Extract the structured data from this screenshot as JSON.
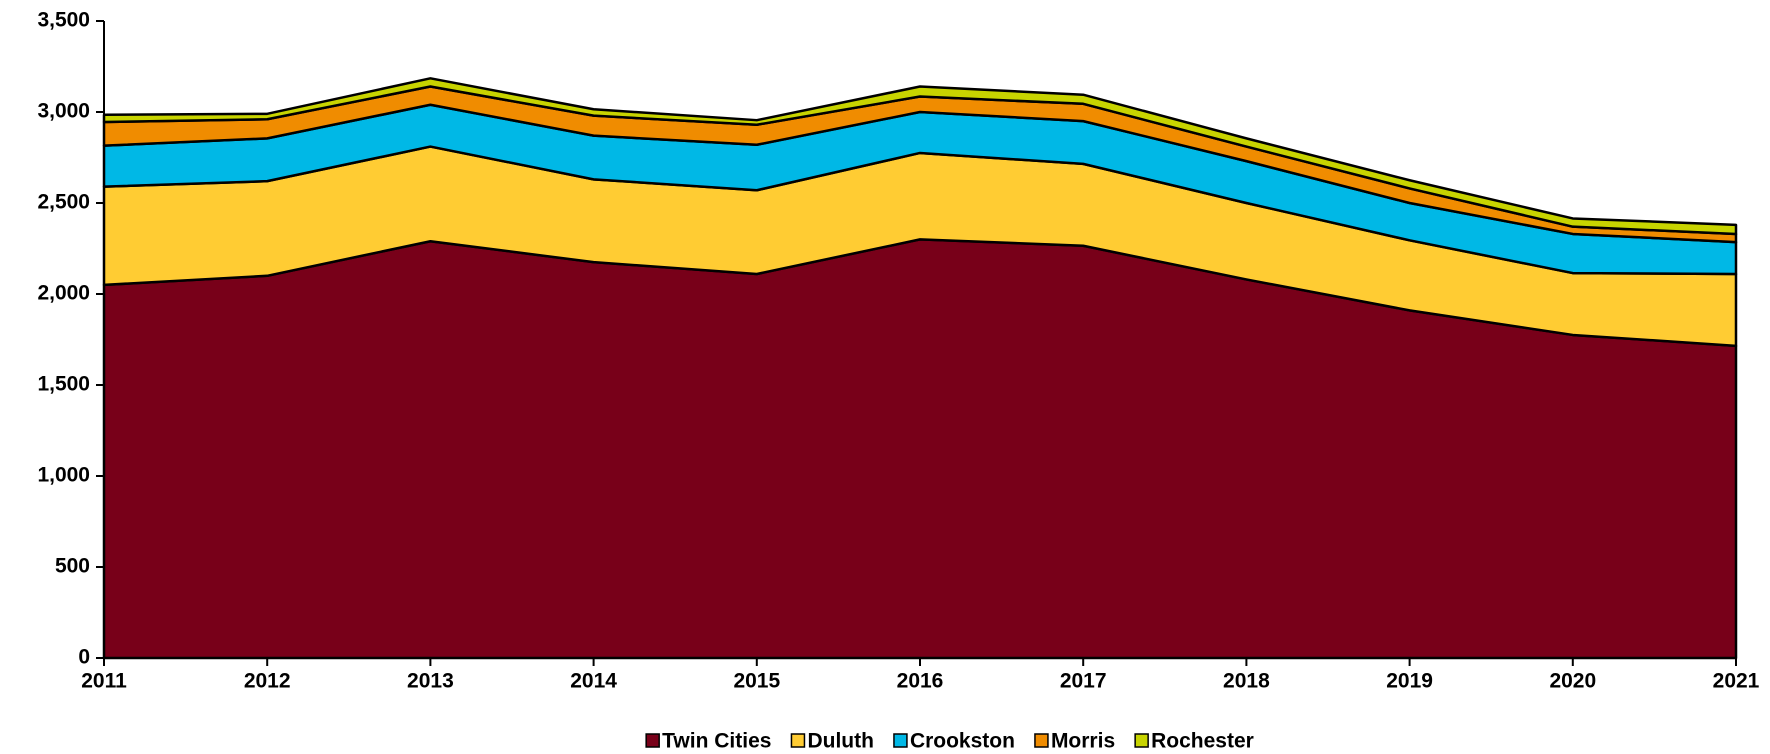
{
  "chart_data": {
    "type": "stacked-area",
    "x": [
      2011,
      2012,
      2013,
      2014,
      2015,
      2016,
      2017,
      2018,
      2019,
      2020,
      2021
    ],
    "xlim": [
      2011,
      2021
    ],
    "ylim": [
      0,
      3500
    ],
    "yticks": [
      0,
      500,
      {
        "value": 1000,
        "label": "1,000"
      },
      {
        "value": 1500,
        "label": "1,500"
      },
      {
        "value": 2000,
        "label": "2,000"
      },
      {
        "value": 2500,
        "label": "2,500"
      },
      {
        "value": 3000,
        "label": "3,000"
      },
      {
        "value": 3500,
        "label": "3,500"
      }
    ],
    "legend": "bottom",
    "series": [
      {
        "name": "Twin Cities",
        "color": "#780019",
        "values": [
          2050,
          2100,
          2290,
          2175,
          2110,
          2300,
          2265,
          2080,
          1910,
          1775,
          1715
        ]
      },
      {
        "name": "Duluth",
        "color": "#ffcc33",
        "values": [
          540,
          520,
          520,
          455,
          460,
          475,
          450,
          420,
          385,
          340,
          395
        ]
      },
      {
        "name": "Crookston",
        "color": "#00b8e6",
        "values": [
          225,
          235,
          230,
          240,
          250,
          225,
          235,
          230,
          205,
          215,
          175
        ]
      },
      {
        "name": "Morris",
        "color": "#f08c00",
        "values": [
          130,
          105,
          100,
          110,
          110,
          85,
          95,
          80,
          80,
          40,
          45
        ]
      },
      {
        "name": "Rochester",
        "color": "#c8d400",
        "values": [
          40,
          30,
          45,
          35,
          25,
          55,
          50,
          45,
          45,
          45,
          50
        ]
      }
    ]
  }
}
